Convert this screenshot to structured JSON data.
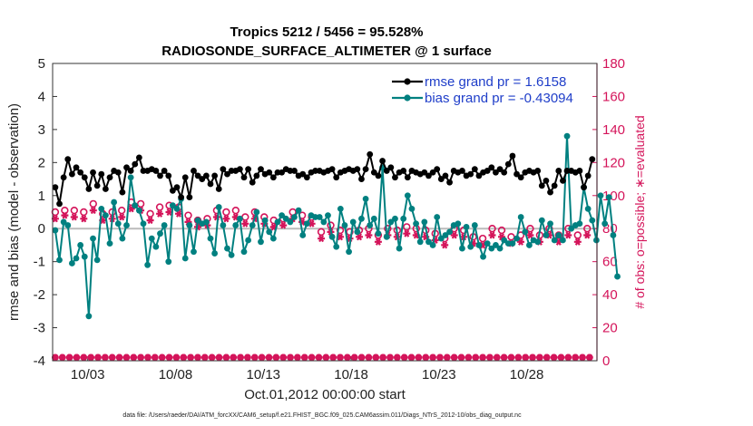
{
  "chart_data": {
    "type": "line",
    "title": "Tropics 5212 / 5456 = 95.528%",
    "subtitle": "RADIOSONDE_SURFACE_ALTIMETER @ 1 surface",
    "xlabel": "Oct.01,2012 00:00:00 start",
    "ylabel": "rmse and bias (model - observation)",
    "ylabel_right": "# of obs: o=possible; ∗=evaluated",
    "footnote": "data file: /Users/raeder/DAI/ATM_forcXX/CAM6_setup/f.e21.FHIST_BGC.f09_025.CAM6assim.011/Diags_NTrS_2012-10/obs_diag_output.nc",
    "x_ticks": [
      "10/03",
      "10/08",
      "10/13",
      "10/18",
      "10/23",
      "10/28"
    ],
    "y_ticks": [
      "-4",
      "-3",
      "-2",
      "-1",
      "0",
      "1",
      "2",
      "3",
      "4",
      "5"
    ],
    "y2_ticks": [
      "0",
      "20",
      "40",
      "60",
      "80",
      "100",
      "120",
      "140",
      "160",
      "180"
    ],
    "xlim": [
      1.0,
      32.0
    ],
    "ylim": [
      -4,
      5
    ],
    "y2lim": [
      0,
      180
    ],
    "colors": {
      "rmse": "#000000",
      "bias": "#008080",
      "obs": "#d4145a",
      "zero": "#bbbbbb",
      "legend_text": "#1f3ec9"
    },
    "legend": [
      {
        "name": "rmse",
        "label": "rmse grand pr = 1.6158"
      },
      {
        "name": "bias",
        "label": "bias grand pr = -0.43094"
      }
    ],
    "rmse": [
      1.25,
      1.75,
      0.75,
      1.7,
      1.55,
      1.8,
      2.1,
      1.75,
      1.65,
      1.7,
      1.85,
      1.75,
      1.7,
      1.8,
      1.55,
      1.7,
      1.2,
      1.65,
      1.7,
      1.8,
      1.3,
      1.7,
      1.65,
      1.85,
      1.2,
      1.75,
      1.55,
      1.7,
      1.75,
      1.95,
      1.7,
      1.8,
      1.1,
      1.6,
      1.85,
      1.7,
      1.75,
      1.75,
      1.95,
      1.8,
      2.15,
      1.65,
      1.75,
      1.8,
      1.75,
      1.7,
      1.8,
      1.55,
      1.75,
      1.8,
      1.6,
      1.7,
      1.75,
      1.65,
      1.6,
      1.7,
      1.15,
      1.65,
      1.25,
      1.85,
      0.95,
      1.6,
      1.55,
      1.7,
      0.95,
      1.8,
      1.75,
      1.7,
      1.6,
      1.2,
      1.5,
      1.8,
      1.6,
      1.7,
      1.35,
      1.65,
      1.6,
      1.75,
      1.2,
      1.7,
      1.8,
      1.75,
      1.65,
      1.45,
      1.75,
      1.25,
      1.75,
      1.7,
      1.8,
      1.7,
      1.55,
      2.25,
      1.8,
      1.55,
      1.4,
      1.75,
      1.6,
      1.7,
      1.8,
      1.95,
      1.65,
      1.75,
      1.7,
      1.75,
      1.55,
      1.6,
      1.7,
      1.75,
      1.7,
      1.65,
      1.8,
      1.75,
      1.75,
      1.6,
      1.75,
      1.7,
      1.6,
      1.75,
      1.65,
      1.7,
      1.55,
      1.75,
      1.7,
      1.65,
      1.75,
      1.7,
      1.75,
      1.8,
      1.7,
      1.05,
      1.75,
      1.7,
      1.8,
      1.65,
      1.55,
      1.65,
      1.7,
      1.8,
      1.75,
      1.55,
      1.8,
      1.7,
      1.75,
      1.6,
      1.8,
      1.7,
      1.5,
      1.7,
      1.8,
      1.65,
      2.25,
      1.5,
      1.7,
      1.4,
      1.6,
      1.65,
      2.05,
      1.8,
      1.75,
      1.65,
      1.85,
      2.1,
      1.55,
      1.75,
      1.7,
      1.8,
      1.75,
      1.2,
      1.55,
      1.6,
      1.75,
      1.65,
      1.7,
      1.75,
      1.65,
      1.6,
      1.7,
      1.75,
      1.6,
      1.55,
      1.7,
      1.75,
      1.8,
      1.7,
      1.5,
      1.35,
      1.6,
      1.55,
      1.4,
      1.7,
      1.75,
      1.8,
      1.7,
      1.65,
      1.75,
      1.8,
      1.6,
      1.7,
      1.65,
      1.75,
      1.8,
      1.75,
      1.6,
      1.75,
      1.7,
      1.05,
      1.75,
      1.7,
      1.85,
      1.45,
      1.7,
      1.75,
      1.8,
      1.65,
      1.7,
      1.75,
      1.95,
      1.75,
      2.2,
      1.6,
      1.65,
      1.75,
      1.55,
      2.15,
      1.7,
      1.6,
      1.75,
      1.4,
      1.7,
      1.8,
      1.75,
      2.05,
      1.3,
      1.55,
      1.45,
      1.75,
      1.1,
      1.35,
      1.3,
      1.65,
      1.75,
      1.55,
      1.45,
      1.6,
      1.75,
      1.45,
      1.75,
      1.8,
      1.7,
      1.9,
      1.75,
      1.85,
      1.25,
      1.55,
      1.6,
      1.75,
      2.1,
      1.8
    ],
    "bias": [
      -0.05,
      0.15,
      -0.95,
      0.45,
      0.2,
      -0.4,
      0.1,
      -0.6,
      -1.05,
      0.15,
      -0.9,
      0.1,
      -0.5,
      1.5,
      -0.85,
      0.15,
      -2.65,
      0.1,
      -0.3,
      0.4,
      -0.95,
      -0.2,
      0.6,
      -0.1,
      0.4,
      0.2,
      -0.45,
      0.6,
      0.8,
      -0.55,
      0.15,
      0.7,
      -0.3,
      0.6,
      0.1,
      -0.6,
      1.55,
      -0.2,
      0.7,
      -0.8,
      0.55,
      -0.3,
      0.15,
      0.7,
      -1.1,
      0.2,
      -0.3,
      0.6,
      -0.55,
      0.3,
      -0.15,
      -0.6,
      0.1,
      0.5,
      -1.0,
      0.3,
      0.7,
      -0.4,
      0.6,
      0.2,
      0.9,
      0.15,
      -0.9,
      -0.2,
      0.1,
      -0.65,
      -0.7,
      0.1,
      0.25,
      0.6,
      0.15,
      -0.5,
      0.2,
      0.6,
      -0.3,
      0.45,
      -0.75,
      0.2,
      0.65,
      -0.4,
      0.1,
      0.6,
      -0.6,
      0.3,
      -0.8,
      0.45,
      0.1,
      -0.5,
      0.3,
      0.7,
      -0.7,
      0.2,
      -0.35,
      0.4,
      0.1,
      -0.3,
      0.5,
      0.2,
      -0.4,
      0.6,
      0.25,
      0.35,
      -0.1,
      0.65,
      -0.3,
      0.4,
      0.2,
      -0.2,
      0.4,
      0.1,
      0.3,
      0.5,
      0.2,
      -0.3,
      0.35,
      -0.1,
      0.55,
      0.25,
      -0.2,
      0.7,
      0.15,
      -0.1,
      0.4,
      0.25,
      0.35,
      0.1,
      0.35,
      0.8,
      0.2,
      -0.2,
      0.4,
      1.0,
      -0.25,
      0.15,
      -0.55,
      0.3,
      0.6,
      -0.4,
      0.1,
      0.8,
      -0.7,
      -0.2,
      0.2,
      -0.5,
      -0.1,
      0.1,
      0.3,
      0.2,
      0.9,
      -0.3,
      0.1,
      -0.1,
      0.3,
      0.05,
      -0.15,
      -0.05,
      1.85,
      0.1,
      -0.25,
      1.95,
      0.2,
      -0.3,
      0.3,
      0.95,
      -0.6,
      -0.2,
      0.3,
      -0.45,
      1.0,
      -0.35,
      0.6,
      -0.3,
      0.15,
      -0.05,
      -0.4,
      0.25,
      0.2,
      -0.3,
      -0.4,
      0.3,
      -0.5,
      -0.2,
      0.35,
      0.1,
      -0.3,
      -0.5,
      -0.2,
      0.0,
      -0.1,
      -0.35,
      0.1,
      -0.65,
      0.15,
      -0.3,
      -0.6,
      -0.2,
      0.05,
      -0.4,
      -0.55,
      -0.2,
      0.1,
      -0.3,
      -0.5,
      -0.3,
      -0.85,
      -0.2,
      -0.45,
      -0.5,
      -0.6,
      -0.3,
      -0.5,
      -0.35,
      -0.6,
      -0.45,
      -0.35,
      -0.7,
      -0.45,
      -0.55,
      -0.45,
      -0.85,
      -0.3,
      -0.1,
      0.35,
      -0.55,
      -0.1,
      -0.6,
      -0.5,
      0.0,
      -0.35,
      1.55,
      -0.4,
      -0.1,
      0.25,
      -0.45,
      -0.2,
      -0.4,
      0.15,
      1.6,
      -0.35,
      1.55,
      -0.2,
      0.2,
      -0.35,
      0.1,
      2.8,
      -0.3,
      0.0,
      -0.1,
      0.1,
      -0.25,
      0.15,
      -0.3,
      1.25,
      -0.4,
      0.6,
      -0.2,
      0.25,
      0.0,
      -0.35,
      0.15,
      1.0,
      -0.3,
      0.15,
      0.4,
      0.95,
      0.1,
      -0.2,
      -0.8,
      -1.45
    ],
    "possible": [
      90,
      92,
      86,
      95,
      91,
      94,
      87,
      96,
      91,
      93,
      89,
      97,
      90,
      94,
      92,
      88,
      95,
      93,
      90,
      96,
      89,
      94,
      92,
      97,
      90,
      93,
      88,
      95,
      91,
      94,
      89,
      93,
      96,
      90,
      92,
      88,
      95,
      91,
      94,
      97,
      89,
      92,
      96,
      90,
      93,
      88,
      95,
      91,
      94,
      92,
      97,
      90,
      93,
      89,
      95,
      92,
      88,
      94,
      91,
      96,
      85,
      90,
      87,
      92,
      86,
      89,
      94,
      87,
      91,
      84,
      88,
      86,
      90,
      85,
      93,
      87,
      91,
      86,
      84,
      89,
      87,
      92,
      88,
      85,
      90,
      86,
      89,
      93,
      87,
      91,
      86,
      88,
      85,
      90,
      87,
      89,
      86,
      92,
      88,
      85,
      90,
      87,
      89,
      86,
      88,
      91,
      85,
      89,
      87,
      86,
      84,
      88,
      78,
      83,
      80,
      76,
      82,
      78,
      74,
      80,
      79,
      85,
      77,
      83,
      78,
      81,
      76,
      84,
      79,
      75,
      82,
      78,
      80,
      77,
      83,
      79,
      76,
      81,
      78,
      74,
      80,
      77,
      82,
      75,
      79,
      84,
      78,
      76,
      81,
      79,
      77,
      74,
      80,
      78,
      82,
      76,
      79,
      75,
      81,
      78,
      77,
      80,
      76,
      82,
      74,
      79,
      78,
      76,
      80,
      75,
      81,
      77,
      79,
      76,
      82,
      78,
      75,
      80,
      77,
      79,
      74,
      81,
      76,
      78,
      80,
      75,
      82,
      77,
      79,
      76,
      78,
      81,
      75,
      80,
      77,
      79,
      76,
      82,
      78,
      75,
      80,
      77,
      79,
      84,
      76,
      81,
      78,
      75,
      80,
      77,
      83,
      79,
      76,
      81,
      78,
      82,
      80,
      77,
      85,
      79,
      76,
      81,
      78,
      83,
      80,
      77,
      79,
      81
    ],
    "evaluated": [
      86,
      89,
      82,
      91,
      88,
      90,
      84,
      92,
      87,
      89,
      85,
      93,
      86,
      90,
      88,
      84,
      91,
      89,
      86,
      92,
      85,
      90,
      88,
      93,
      86,
      89,
      84,
      91,
      87,
      90,
      85,
      89,
      92,
      86,
      88,
      84,
      91,
      87,
      90,
      93,
      85,
      88,
      92,
      86,
      89,
      84,
      91,
      87,
      90,
      88,
      93,
      86,
      89,
      85,
      91,
      88,
      84,
      90,
      87,
      92,
      81,
      86,
      83,
      88,
      82,
      85,
      90,
      83,
      87,
      80,
      84,
      82,
      86,
      81,
      89,
      83,
      87,
      82,
      80,
      85,
      83,
      88,
      84,
      81,
      86,
      82,
      85,
      89,
      83,
      87,
      82,
      84,
      81,
      86,
      83,
      85,
      82,
      88,
      84,
      81,
      86,
      83,
      85,
      82,
      84,
      87,
      81,
      85,
      83,
      82,
      80,
      84,
      74,
      79,
      76,
      72,
      78,
      74,
      70,
      76,
      75,
      81,
      73,
      79,
      74,
      77,
      72,
      80,
      75,
      71,
      78,
      74,
      76,
      73,
      79,
      75,
      72,
      77,
      74,
      70,
      76,
      73,
      78,
      71,
      75,
      80,
      74,
      72,
      77,
      75,
      73,
      70,
      76,
      74,
      78,
      72,
      75,
      71,
      77,
      74,
      73,
      76,
      72,
      78,
      70,
      75,
      74,
      72,
      76,
      71,
      77,
      73,
      75,
      72,
      78,
      74,
      71,
      76,
      73,
      75,
      70,
      77,
      72,
      74,
      76,
      71,
      78,
      73,
      75,
      72,
      74,
      77,
      71,
      76,
      73,
      75,
      72,
      78,
      74,
      71,
      76,
      73,
      75,
      80,
      72,
      77,
      74,
      71,
      76,
      73,
      79,
      75,
      72,
      77,
      74,
      78,
      76,
      73,
      81,
      75,
      72,
      77,
      74,
      79,
      76,
      73,
      75,
      77
    ],
    "possible_bottom": 2,
    "evaluated_bottom": 2
  }
}
